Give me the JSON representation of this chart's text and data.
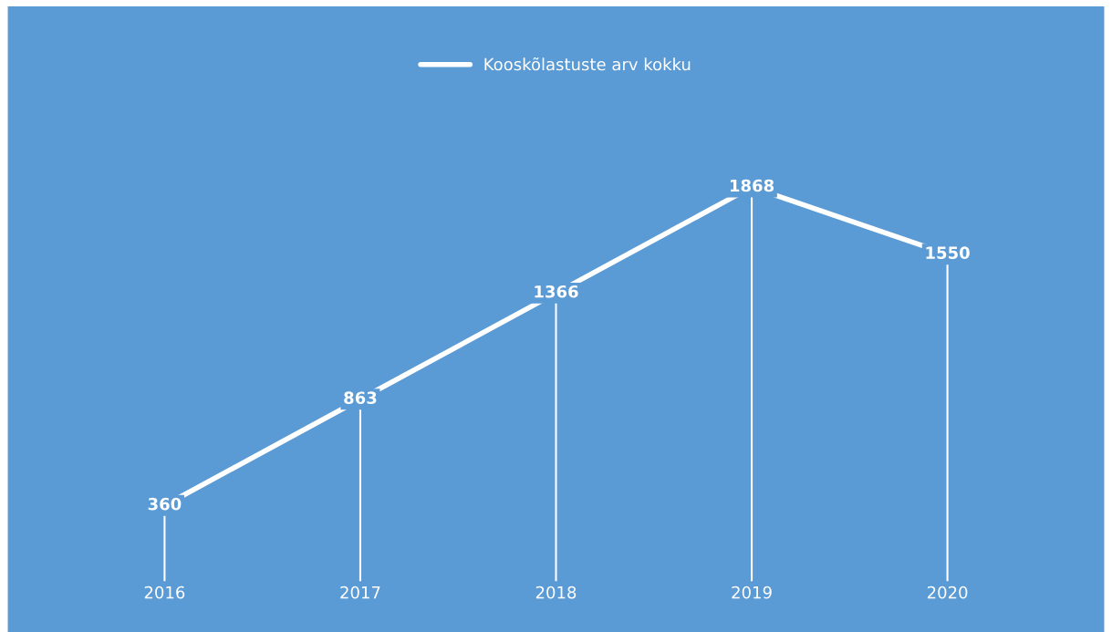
{
  "chart_data": {
    "type": "line",
    "categories": [
      "2016",
      "2017",
      "2018",
      "2019",
      "2020"
    ],
    "series": [
      {
        "name": "Kooskõlastuste arv kokku",
        "color": "#ffffff",
        "values": [
          360,
          863,
          1366,
          1868,
          1550
        ]
      }
    ],
    "tick_labels": "x",
    "data_labels": true,
    "legend": "top",
    "grid": "x",
    "marker": "none",
    "line_style": "solid"
  }
}
